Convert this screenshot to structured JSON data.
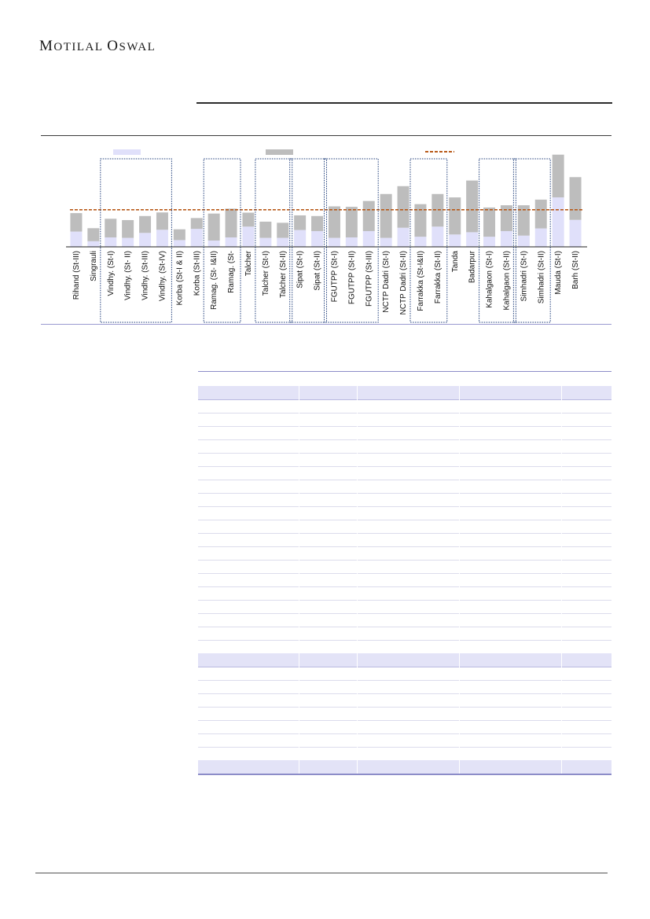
{
  "header": {
    "logo_first_initial": "M",
    "logo_first_rest": "OTILAL",
    "logo_second_initial": "O",
    "logo_second_rest": "SWAL"
  },
  "colors": {
    "light_bar": "#e0e0fa",
    "grey_bar": "#bdbdbd",
    "dashed_line": "#b85a1a",
    "group_box": "#1f3d7a"
  },
  "chart_data": {
    "type": "bar",
    "stacked": true,
    "grid": false,
    "legend_position": "top",
    "legend_labels_visible": false,
    "reference_line": {
      "style": "dashed",
      "value": 1.65
    },
    "ylim": [
      0,
      4.3
    ],
    "categories": [
      "Rihand (St-III)",
      "Singrauli",
      "Vindhy. (St-I)",
      "Vindhy. (St- II)",
      "Vindhy. (St-III)",
      "Vindhy. (St-IV)",
      "Korba (St-I & II)",
      "Korba (St-III)",
      "Ramag. (St- I&II)",
      "Ramag. (St-",
      "Talcher",
      "Talcher (St-I)",
      "Talcher (St-II)",
      "Sipat (St-I)",
      "Sipat (St-II)",
      "FGUTPP (St-I)",
      "FGUTPP (St-II)",
      "FGUTPP (St-III)",
      "NCTP Dadri (St-I)",
      "NCTP Dadri (St-II)",
      "Farrakka (St-I&II)",
      "Farrakka (St-II)",
      "Tanda",
      "Badarpur",
      "Kahalgaon (St-I)",
      "Kahalgaon (St-II)",
      "Simhadri (St-I)",
      "Simhadri (St-II)",
      "Mauda (St-I)",
      "Barh (St-II)"
    ],
    "series": [
      {
        "values": [
          0.68,
          0.25,
          0.42,
          0.4,
          0.62,
          0.76,
          0.3,
          0.8,
          0.28,
          0.42,
          0.9,
          0.4,
          0.4,
          0.75,
          0.7,
          0.4,
          0.42,
          0.7,
          0.4,
          0.85,
          0.45,
          0.9,
          0.55,
          0.65,
          0.45,
          0.7,
          0.5,
          0.82,
          2.2,
          1.2
        ]
      },
      {
        "values": [
          0.82,
          0.58,
          0.83,
          0.79,
          0.75,
          0.77,
          0.48,
          0.48,
          1.2,
          1.28,
          0.62,
          0.72,
          0.67,
          0.65,
          0.67,
          1.4,
          1.36,
          1.34,
          1.95,
          1.85,
          1.45,
          1.45,
          1.65,
          2.3,
          1.3,
          1.15,
          1.35,
          1.28,
          1.9,
          1.9
        ]
      }
    ],
    "group_boxes": [
      {
        "from": 2,
        "to": 5
      },
      {
        "from": 8,
        "to": 9
      },
      {
        "from": 11,
        "to": 12
      },
      {
        "from": 13,
        "to": 14
      },
      {
        "from": 15,
        "to": 17
      },
      {
        "from": 20,
        "to": 21
      },
      {
        "from": 24,
        "to": 25
      },
      {
        "from": 26,
        "to": 27
      }
    ]
  },
  "table": {
    "row_count": 29,
    "highlight_rows": [
      0,
      20,
      28
    ],
    "column_fractions": [
      0.2433,
      0.3846,
      0.6312,
      0.8783
    ]
  }
}
